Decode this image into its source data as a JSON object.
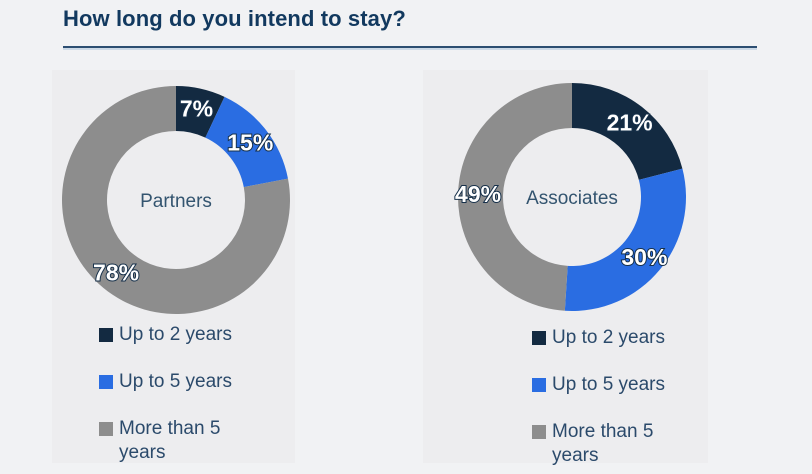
{
  "title": {
    "text": "How long do you intend to stay?"
  },
  "theme": {
    "background": "#f1f2f4",
    "panel": "#ededef",
    "title_color": "#12395f",
    "rule_color": "#2c4e71",
    "legend_text_color": "#2b4a6b",
    "percent_label_color": "#ffffff"
  },
  "chart_data": [
    {
      "type": "pie",
      "subtype": "donut",
      "center_label": "Partners",
      "categories": [
        "Up to 2 years",
        "Up to 5 years",
        "More than 5 years"
      ],
      "values": [
        7,
        15,
        78
      ],
      "labels": [
        "7%",
        "15%",
        "78%"
      ],
      "colors": [
        "#132a41",
        "#2a6de2",
        "#8d8d8d"
      ],
      "unit": "%",
      "start_angle_deg": 0,
      "direction": "clockwise",
      "legend_position": "bottom-left"
    },
    {
      "type": "pie",
      "subtype": "donut",
      "center_label": "Associates",
      "categories": [
        "Up to 2 years",
        "Up to 5 years",
        "More than 5 years"
      ],
      "values": [
        21,
        30,
        49
      ],
      "labels": [
        "21%",
        "30%",
        "49%"
      ],
      "colors": [
        "#132a41",
        "#2a6de2",
        "#8d8d8d"
      ],
      "unit": "%",
      "start_angle_deg": 0,
      "direction": "clockwise",
      "legend_position": "bottom-left"
    }
  ]
}
